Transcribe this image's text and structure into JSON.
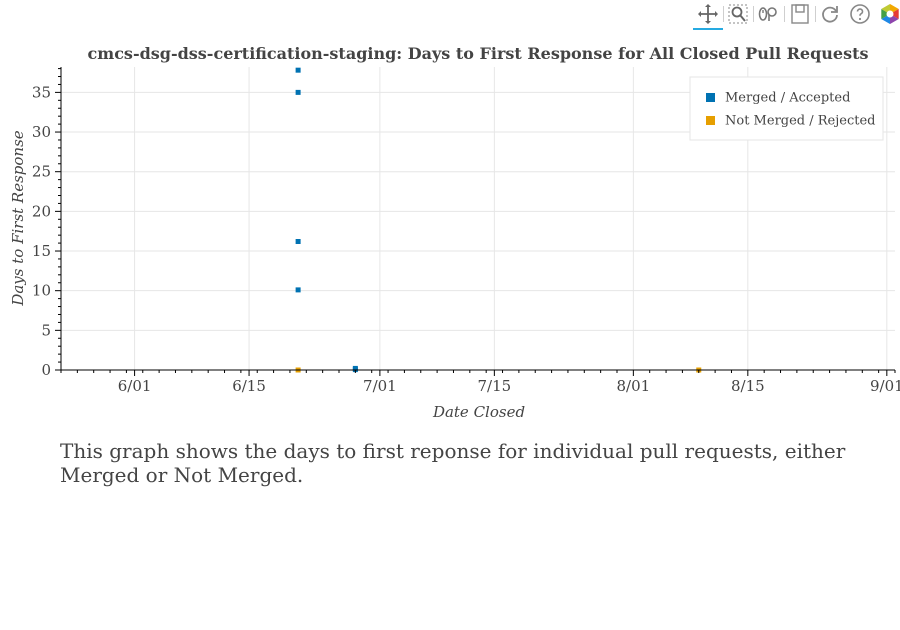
{
  "toolbar": {
    "tools": [
      {
        "name": "pan-tool",
        "icon": "pan-icon",
        "active": true
      },
      {
        "name": "box-zoom-tool",
        "icon": "box-zoom-icon",
        "active": false
      },
      {
        "name": "wheel-zoom-tool",
        "icon": "wheel-zoom-icon",
        "active": false
      },
      {
        "name": "save-tool",
        "icon": "save-icon",
        "active": false
      },
      {
        "name": "reset-tool",
        "icon": "reset-icon",
        "active": false
      },
      {
        "name": "help-tool",
        "icon": "help-icon",
        "active": false
      },
      {
        "name": "bokeh-logo",
        "icon": "bokeh-logo-icon",
        "active": false
      }
    ],
    "active_color": "#26aae1"
  },
  "description": "This graph shows the days to first reponse for individual pull requests, either Merged or Not Merged.",
  "chart_data": {
    "type": "scatter",
    "title": "cmcs-dsg-dss-certification-staging: Days to First Response for All Closed Pull Requests",
    "xlabel": "Date Closed",
    "ylabel": "Days to First Response",
    "x_axis_type": "datetime",
    "xlim": [
      "2021-05-23",
      "2021-09-02"
    ],
    "ylim": [
      0,
      38.2
    ],
    "x_ticks": [
      {
        "date": "2021-06-01",
        "label": "6/01"
      },
      {
        "date": "2021-06-15",
        "label": "6/15"
      },
      {
        "date": "2021-07-01",
        "label": "7/01"
      },
      {
        "date": "2021-07-15",
        "label": "7/15"
      },
      {
        "date": "2021-08-01",
        "label": "8/01"
      },
      {
        "date": "2021-08-15",
        "label": "8/15"
      },
      {
        "date": "2021-09-01",
        "label": "9/01"
      }
    ],
    "y_ticks": [
      0,
      5,
      10,
      15,
      20,
      25,
      30,
      35
    ],
    "grid": true,
    "legend_location": "top-right",
    "series": [
      {
        "name": "Merged / Accepted",
        "color": "#0072b2",
        "points": [
          {
            "x": "2021-06-21",
            "y": 37.8
          },
          {
            "x": "2021-06-21",
            "y": 35.0
          },
          {
            "x": "2021-06-21",
            "y": 16.2
          },
          {
            "x": "2021-06-21",
            "y": 10.1
          },
          {
            "x": "2021-06-28",
            "y": 0.2
          },
          {
            "x": "2021-06-28",
            "y": 0.05
          }
        ]
      },
      {
        "name": "Not Merged / Rejected",
        "color": "#e69f00",
        "points": [
          {
            "x": "2021-06-21",
            "y": 0.0
          },
          {
            "x": "2021-08-09",
            "y": 0.0
          }
        ]
      }
    ]
  }
}
